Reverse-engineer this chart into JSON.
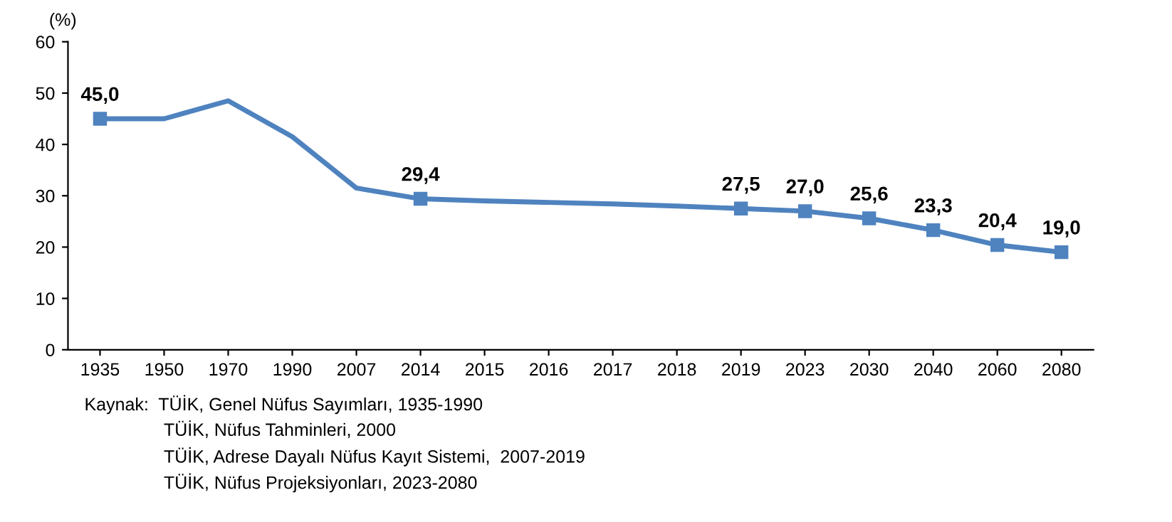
{
  "chart_data": {
    "type": "line",
    "ylabel": "(%)",
    "categories": [
      "1935",
      "1950",
      "1970",
      "1990",
      "2007",
      "2014",
      "2015",
      "2016",
      "2017",
      "2018",
      "2019",
      "2023",
      "2030",
      "2040",
      "2060",
      "2080"
    ],
    "series": [
      {
        "color": "#4f83bf",
        "marker": "square",
        "values": [
          45.0,
          45.0,
          48.5,
          41.5,
          31.5,
          29.4,
          29.0,
          28.7,
          28.4,
          28.0,
          27.5,
          27.0,
          25.6,
          23.3,
          20.4,
          19.0
        ],
        "value_labels": [
          "45,0",
          null,
          null,
          null,
          null,
          "29,4",
          null,
          null,
          null,
          null,
          "27,5",
          "27,0",
          "25,6",
          "23,3",
          "20,4",
          "19,0"
        ]
      }
    ],
    "ylim": [
      0,
      60
    ],
    "yticks": [
      0,
      10,
      20,
      30,
      40,
      50,
      60
    ],
    "grid": false,
    "legend": false,
    "annotations": [
      "Kaynak:  TÜİK, Genel Nüfus Sayımları, 1935-1990",
      "TÜİK, Nüfus Tahminleri, 2000",
      "TÜİK, Adrese Dayalı Nüfus Kayıt Sistemi,  2007-2019",
      "TÜİK, Nüfus Projeksiyonları, 2023-2080"
    ]
  }
}
